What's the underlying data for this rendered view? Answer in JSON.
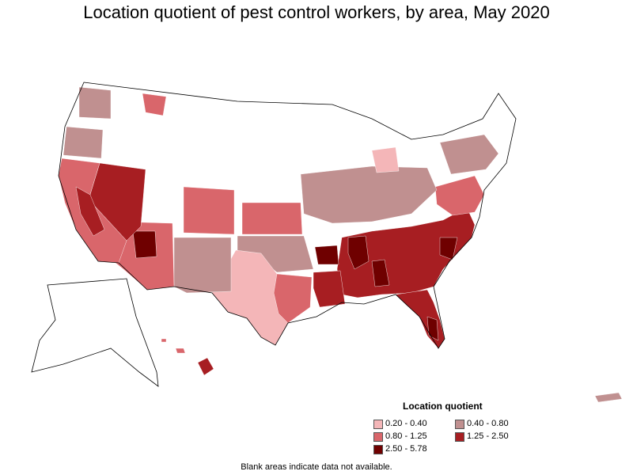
{
  "title": "Location quotient of pest control workers, by area, May 2020",
  "legend": {
    "title": "Location quotient",
    "items": [
      {
        "label": "0.20 - 0.40",
        "color": "#f4b6b8"
      },
      {
        "label": "0.40 - 0.80",
        "color": "#c09090"
      },
      {
        "label": "0.80 - 1.25",
        "color": "#d9666b"
      },
      {
        "label": "1.25 - 2.50",
        "color": "#a71e22"
      },
      {
        "label": "2.50 - 5.78",
        "color": "#6f0000"
      }
    ]
  },
  "footnote": "Blank areas indicate data not available.",
  "map_regions": [
    {
      "name": "Southeast",
      "class": "1.25 - 2.50"
    },
    {
      "name": "Florida",
      "class": "1.25 - 2.50"
    },
    {
      "name": "Nevada",
      "class": "1.25 - 2.50"
    },
    {
      "name": "Arizona",
      "class": "0.80 - 1.25"
    },
    {
      "name": "Texas",
      "class": "0.20 - 0.40"
    },
    {
      "name": "Kansas",
      "class": "0.80 - 1.25"
    },
    {
      "name": "California",
      "class": "0.80 - 1.25"
    },
    {
      "name": "Hawaii",
      "class": "1.25 - 2.50"
    },
    {
      "name": "Midwest",
      "class": "0.40 - 0.80"
    },
    {
      "name": "New Mexico",
      "class": "0.40 - 0.80"
    }
  ]
}
